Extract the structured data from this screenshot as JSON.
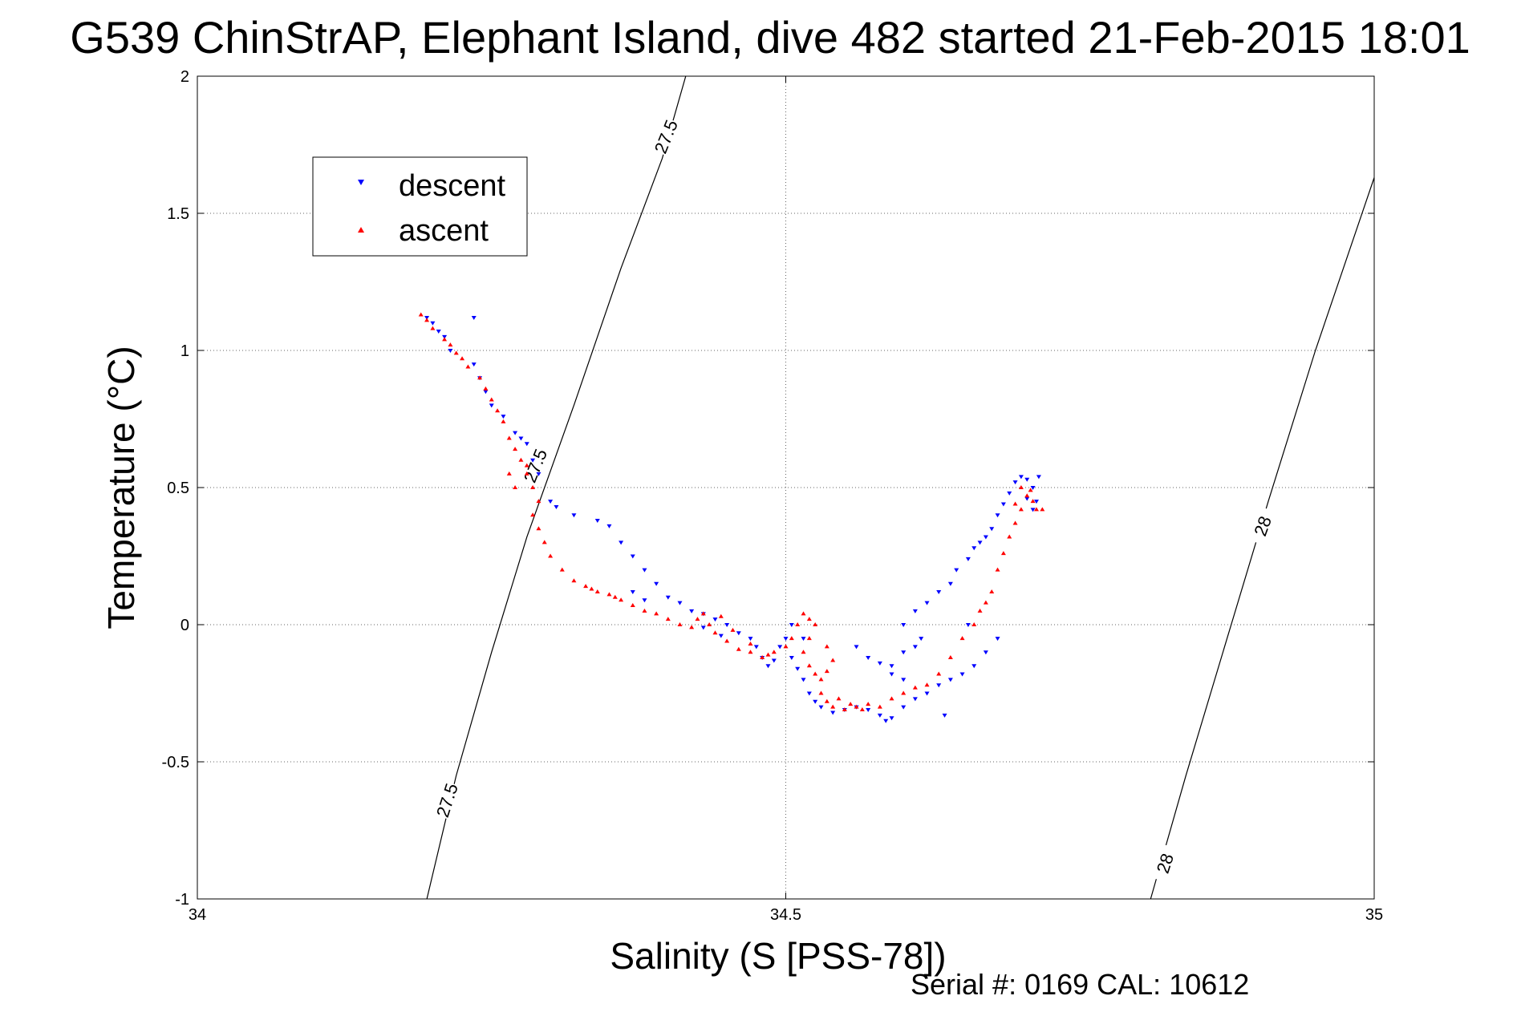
{
  "figure": {
    "title": "G539 ChinStrAP, Elephant Island, dive 482 started 21-Feb-2015 18:01",
    "footer": "Serial #: 0169 CAL: 10612"
  },
  "chart_data": {
    "type": "scatter",
    "title": "G539 ChinStrAP, Elephant Island, dive 482 started 21-Feb-2015 18:01",
    "xlabel": "Salinity (S [PSS-78])",
    "ylabel": "Temperature (°C)",
    "xlim": [
      34,
      35
    ],
    "ylim": [
      -1,
      2
    ],
    "xticks": [
      34,
      34.5,
      35
    ],
    "xtick_labels": [
      "34",
      "34.5",
      "35"
    ],
    "yticks": [
      2,
      1.5,
      1,
      0.5,
      0,
      -0.5,
      -1
    ],
    "ytick_labels": [
      "2",
      "1.5",
      "1",
      "0.5",
      "0",
      "-0.5",
      "-1"
    ],
    "grid": true,
    "legend_position": "top-left",
    "series": [
      {
        "name": "descent",
        "color": "#0000ff",
        "marker": "triangle-down",
        "points": [
          [
            34.195,
            1.12
          ],
          [
            34.2,
            1.1
          ],
          [
            34.205,
            1.07
          ],
          [
            34.21,
            1.05
          ],
          [
            34.215,
            1.0
          ],
          [
            34.235,
            0.95
          ],
          [
            34.24,
            0.9
          ],
          [
            34.245,
            0.85
          ],
          [
            34.25,
            0.8
          ],
          [
            34.26,
            0.76
          ],
          [
            34.235,
            1.12
          ],
          [
            34.27,
            0.7
          ],
          [
            34.275,
            0.68
          ],
          [
            34.28,
            0.66
          ],
          [
            34.285,
            0.6
          ],
          [
            34.29,
            0.55
          ],
          [
            34.3,
            0.45
          ],
          [
            34.305,
            0.43
          ],
          [
            34.32,
            0.4
          ],
          [
            34.34,
            0.38
          ],
          [
            34.35,
            0.36
          ],
          [
            34.36,
            0.3
          ],
          [
            34.37,
            0.25
          ],
          [
            34.38,
            0.2
          ],
          [
            34.39,
            0.15
          ],
          [
            34.4,
            0.1
          ],
          [
            34.41,
            0.08
          ],
          [
            34.42,
            0.05
          ],
          [
            34.43,
            0.04
          ],
          [
            34.44,
            0.02
          ],
          [
            34.45,
            0.0
          ],
          [
            34.46,
            -0.03
          ],
          [
            34.47,
            -0.05
          ],
          [
            34.475,
            -0.08
          ],
          [
            34.48,
            -0.12
          ],
          [
            34.485,
            -0.15
          ],
          [
            34.49,
            -0.13
          ],
          [
            34.495,
            -0.08
          ],
          [
            34.5,
            -0.05
          ],
          [
            34.505,
            -0.12
          ],
          [
            34.51,
            -0.16
          ],
          [
            34.515,
            -0.2
          ],
          [
            34.52,
            -0.25
          ],
          [
            34.525,
            -0.28
          ],
          [
            34.53,
            -0.3
          ],
          [
            34.54,
            -0.32
          ],
          [
            34.55,
            -0.31
          ],
          [
            34.56,
            -0.3
          ],
          [
            34.57,
            -0.31
          ],
          [
            34.58,
            -0.33
          ],
          [
            34.585,
            -0.35
          ],
          [
            34.59,
            -0.34
          ],
          [
            34.6,
            -0.3
          ],
          [
            34.61,
            -0.27
          ],
          [
            34.62,
            -0.25
          ],
          [
            34.63,
            -0.22
          ],
          [
            34.64,
            -0.2
          ],
          [
            34.65,
            -0.18
          ],
          [
            34.66,
            -0.15
          ],
          [
            34.67,
            -0.1
          ],
          [
            34.68,
            -0.05
          ],
          [
            34.59,
            -0.15
          ],
          [
            34.6,
            -0.1
          ],
          [
            34.61,
            -0.08
          ],
          [
            34.615,
            -0.05
          ],
          [
            34.6,
            0.0
          ],
          [
            34.61,
            0.05
          ],
          [
            34.62,
            0.08
          ],
          [
            34.63,
            0.12
          ],
          [
            34.64,
            0.15
          ],
          [
            34.645,
            0.2
          ],
          [
            34.655,
            0.24
          ],
          [
            34.66,
            0.28
          ],
          [
            34.665,
            0.3
          ],
          [
            34.67,
            0.32
          ],
          [
            34.675,
            0.35
          ],
          [
            34.68,
            0.4
          ],
          [
            34.685,
            0.44
          ],
          [
            34.69,
            0.48
          ],
          [
            34.695,
            0.52
          ],
          [
            34.7,
            0.54
          ],
          [
            34.705,
            0.53
          ],
          [
            34.71,
            0.5
          ],
          [
            34.713,
            0.45
          ],
          [
            34.71,
            0.42
          ],
          [
            34.705,
            0.46
          ],
          [
            34.715,
            0.54
          ],
          [
            34.655,
            0.0
          ],
          [
            34.635,
            -0.33
          ],
          [
            34.56,
            -0.08
          ],
          [
            34.57,
            -0.12
          ],
          [
            34.58,
            -0.14
          ],
          [
            34.59,
            -0.18
          ],
          [
            34.6,
            -0.2
          ],
          [
            34.505,
            0.0
          ],
          [
            34.515,
            -0.05
          ],
          [
            34.37,
            0.12
          ],
          [
            34.38,
            0.09
          ],
          [
            34.43,
            -0.01
          ],
          [
            34.445,
            -0.04
          ]
        ]
      },
      {
        "name": "ascent",
        "color": "#ff0000",
        "marker": "triangle-up",
        "points": [
          [
            34.19,
            1.13
          ],
          [
            34.195,
            1.11
          ],
          [
            34.2,
            1.08
          ],
          [
            34.21,
            1.04
          ],
          [
            34.215,
            1.02
          ],
          [
            34.22,
            0.99
          ],
          [
            34.225,
            0.97
          ],
          [
            34.23,
            0.94
          ],
          [
            34.24,
            0.9
          ],
          [
            34.245,
            0.86
          ],
          [
            34.25,
            0.82
          ],
          [
            34.255,
            0.78
          ],
          [
            34.26,
            0.74
          ],
          [
            34.265,
            0.68
          ],
          [
            34.27,
            0.64
          ],
          [
            34.275,
            0.6
          ],
          [
            34.28,
            0.55
          ],
          [
            34.285,
            0.5
          ],
          [
            34.29,
            0.45
          ],
          [
            34.285,
            0.4
          ],
          [
            34.29,
            0.35
          ],
          [
            34.295,
            0.3
          ],
          [
            34.3,
            0.25
          ],
          [
            34.31,
            0.2
          ],
          [
            34.32,
            0.16
          ],
          [
            34.33,
            0.14
          ],
          [
            34.34,
            0.12
          ],
          [
            34.35,
            0.11
          ],
          [
            34.36,
            0.09
          ],
          [
            34.37,
            0.07
          ],
          [
            34.38,
            0.05
          ],
          [
            34.39,
            0.04
          ],
          [
            34.4,
            0.02
          ],
          [
            34.41,
            0.0
          ],
          [
            34.42,
            -0.01
          ],
          [
            34.425,
            0.02
          ],
          [
            34.43,
            0.04
          ],
          [
            34.435,
            0.0
          ],
          [
            34.44,
            -0.03
          ],
          [
            34.45,
            -0.06
          ],
          [
            34.46,
            -0.09
          ],
          [
            34.47,
            -0.1
          ],
          [
            34.48,
            -0.12
          ],
          [
            34.49,
            -0.1
          ],
          [
            34.5,
            -0.08
          ],
          [
            34.505,
            -0.05
          ],
          [
            34.51,
            0.0
          ],
          [
            34.515,
            0.04
          ],
          [
            34.52,
            0.02
          ],
          [
            34.525,
            0.0
          ],
          [
            34.52,
            -0.05
          ],
          [
            34.515,
            -0.1
          ],
          [
            34.52,
            -0.15
          ],
          [
            34.525,
            -0.18
          ],
          [
            34.53,
            -0.2
          ],
          [
            34.535,
            -0.17
          ],
          [
            34.54,
            -0.13
          ],
          [
            34.535,
            -0.08
          ],
          [
            34.53,
            -0.25
          ],
          [
            34.535,
            -0.28
          ],
          [
            34.54,
            -0.3
          ],
          [
            34.55,
            -0.31
          ],
          [
            34.56,
            -0.3
          ],
          [
            34.57,
            -0.29
          ],
          [
            34.58,
            -0.3
          ],
          [
            34.59,
            -0.27
          ],
          [
            34.6,
            -0.25
          ],
          [
            34.61,
            -0.23
          ],
          [
            34.62,
            -0.22
          ],
          [
            34.63,
            -0.18
          ],
          [
            34.64,
            -0.12
          ],
          [
            34.65,
            -0.05
          ],
          [
            34.66,
            0.0
          ],
          [
            34.665,
            0.05
          ],
          [
            34.67,
            0.08
          ],
          [
            34.675,
            0.12
          ],
          [
            34.68,
            0.2
          ],
          [
            34.685,
            0.26
          ],
          [
            34.69,
            0.32
          ],
          [
            34.695,
            0.37
          ],
          [
            34.7,
            0.42
          ],
          [
            34.705,
            0.47
          ],
          [
            34.708,
            0.49
          ],
          [
            34.71,
            0.45
          ],
          [
            34.713,
            0.42
          ],
          [
            34.718,
            0.42
          ],
          [
            34.7,
            0.5
          ],
          [
            34.695,
            0.44
          ],
          [
            34.265,
            0.55
          ],
          [
            34.27,
            0.5
          ],
          [
            34.28,
            0.58
          ],
          [
            34.335,
            0.13
          ],
          [
            34.355,
            0.1
          ],
          [
            34.445,
            0.03
          ],
          [
            34.455,
            -0.02
          ],
          [
            34.47,
            -0.07
          ],
          [
            34.485,
            -0.11
          ],
          [
            34.545,
            -0.27
          ],
          [
            34.555,
            -0.29
          ],
          [
            34.565,
            -0.31
          ]
        ]
      }
    ],
    "contours": [
      {
        "value": 27.5,
        "labels": [
          "27.5",
          "27.5",
          "27.5"
        ]
      },
      {
        "value": 28,
        "labels": [
          "28",
          "28"
        ]
      }
    ]
  }
}
